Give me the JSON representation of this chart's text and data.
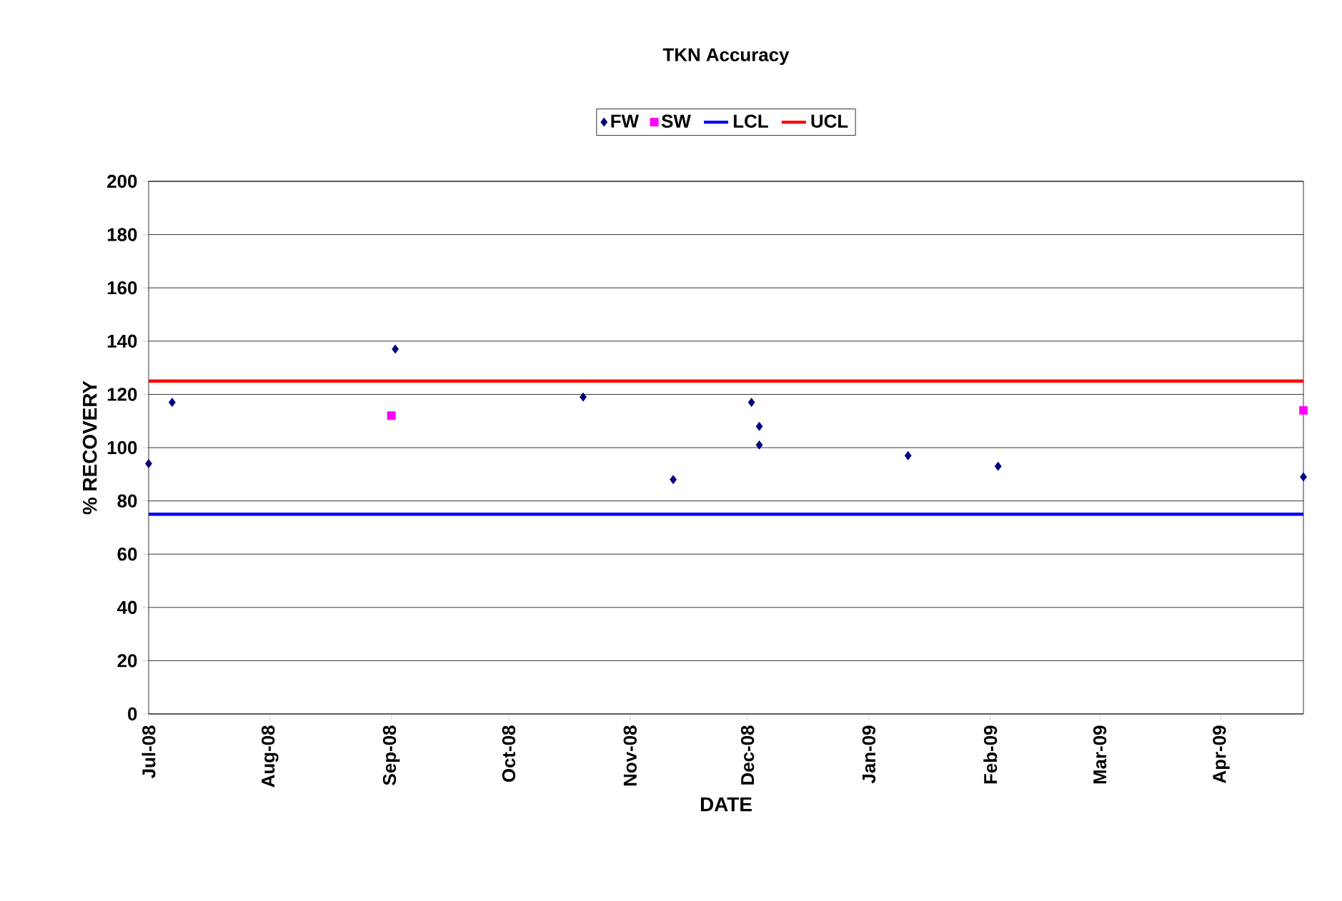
{
  "chart_data": {
    "type": "scatter",
    "title": "TKN Accuracy",
    "xlabel": "DATE",
    "ylabel": "% RECOVERY",
    "series": [
      {
        "name": "FW",
        "color": "#000080",
        "marker": "diamond",
        "x": [
          "2008-07-01",
          "2008-07-07",
          "2008-09-02",
          "2008-10-20",
          "2008-11-12",
          "2008-12-02",
          "2008-12-04",
          "2008-12-04",
          "2009-01-11",
          "2009-02-03",
          "2009-04-22"
        ],
        "values": [
          94,
          117,
          137,
          119,
          88,
          117,
          108,
          101,
          97,
          93,
          89
        ]
      },
      {
        "name": "SW",
        "color": "#ff00ff",
        "marker": "square",
        "x": [
          "2008-09-01",
          "2009-04-22"
        ],
        "values": [
          112,
          114
        ]
      },
      {
        "name": "LCL",
        "type": "line",
        "color": "#0000ff",
        "marker": "none",
        "x": [
          "2008-07-01",
          "2009-04-22"
        ],
        "values": [
          75,
          75
        ]
      },
      {
        "name": "UCL",
        "type": "line",
        "color": "#ff0000",
        "marker": "none",
        "x": [
          "2008-07-01",
          "2009-04-22"
        ],
        "values": [
          125,
          125
        ]
      }
    ],
    "xlim": [
      "2008-07-01",
      "2009-04-22"
    ],
    "xticks": [
      {
        "value": "2008-07-01",
        "label": "Jul-08"
      },
      {
        "value": "2008-08-01",
        "label": "Aug-08"
      },
      {
        "value": "2008-09-01",
        "label": "Sep-08"
      },
      {
        "value": "2008-10-01",
        "label": "Oct-08"
      },
      {
        "value": "2008-11-01",
        "label": "Nov-08"
      },
      {
        "value": "2008-12-01",
        "label": "Dec-08"
      },
      {
        "value": "2009-01-01",
        "label": "Jan-09"
      },
      {
        "value": "2009-02-01",
        "label": "Feb-09"
      },
      {
        "value": "2009-03-01",
        "label": "Mar-09"
      },
      {
        "value": "2009-04-01",
        "label": "Apr-09"
      }
    ],
    "ylim": [
      0,
      200
    ],
    "yticks": [
      0,
      20,
      40,
      60,
      80,
      100,
      120,
      140,
      160,
      180,
      200
    ],
    "grid": "y",
    "legend": "top"
  }
}
